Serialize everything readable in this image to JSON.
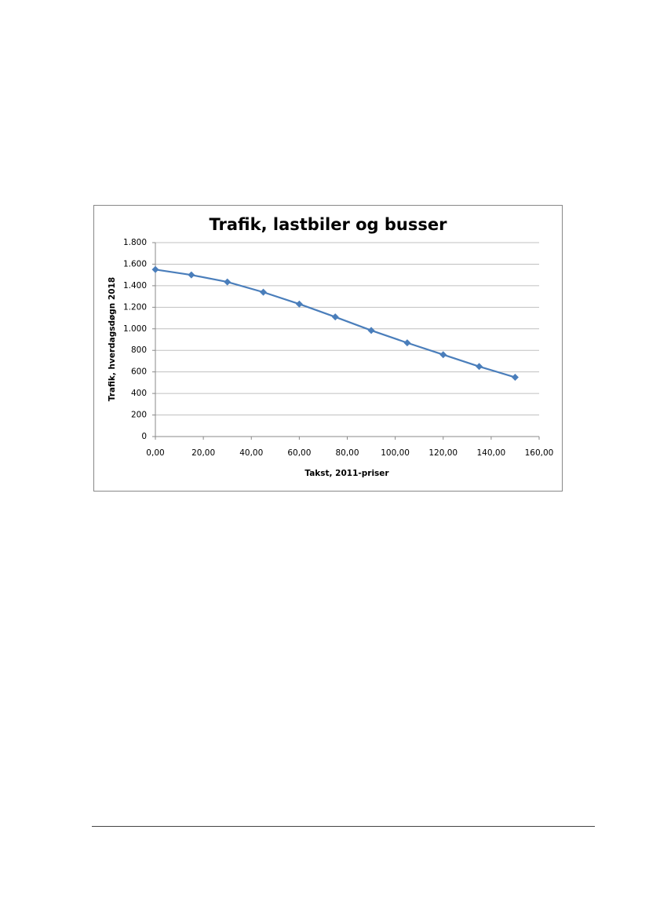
{
  "chart_data": {
    "type": "line",
    "title": "Trafik, lastbiler og busser",
    "x_label": "Takst, 2011-priser",
    "y_label": "Trafik, hverdagsdøgn 2018",
    "x": [
      0,
      15,
      30,
      45,
      60,
      75,
      90,
      105,
      120,
      135,
      150
    ],
    "series": [
      {
        "name": "Trafik",
        "color": "#4a7ebb",
        "values": [
          1550,
          1500,
          1435,
          1340,
          1230,
          1110,
          985,
          870,
          760,
          650,
          550
        ]
      }
    ],
    "xlim": [
      0,
      160
    ],
    "xticks": [
      {
        "value": 0,
        "label": "0,00"
      },
      {
        "value": 20,
        "label": "20,00"
      },
      {
        "value": 40,
        "label": "40,00"
      },
      {
        "value": 60,
        "label": "60,00"
      },
      {
        "value": 80,
        "label": "80,00"
      },
      {
        "value": 100,
        "label": "100,00"
      },
      {
        "value": 120,
        "label": "120,00"
      },
      {
        "value": 140,
        "label": "140,00"
      },
      {
        "value": 160,
        "label": "160,00"
      }
    ],
    "ylim": [
      0,
      1800
    ],
    "yticks": [
      0,
      200,
      400,
      600,
      800,
      {
        "value": 1000,
        "label": "1.000"
      },
      {
        "value": 1200,
        "label": "1.200"
      },
      {
        "value": 1400,
        "label": "1.400"
      },
      {
        "value": 1600,
        "label": "1.600"
      },
      {
        "value": 1800,
        "label": "1.800"
      }
    ],
    "grid": true
  }
}
